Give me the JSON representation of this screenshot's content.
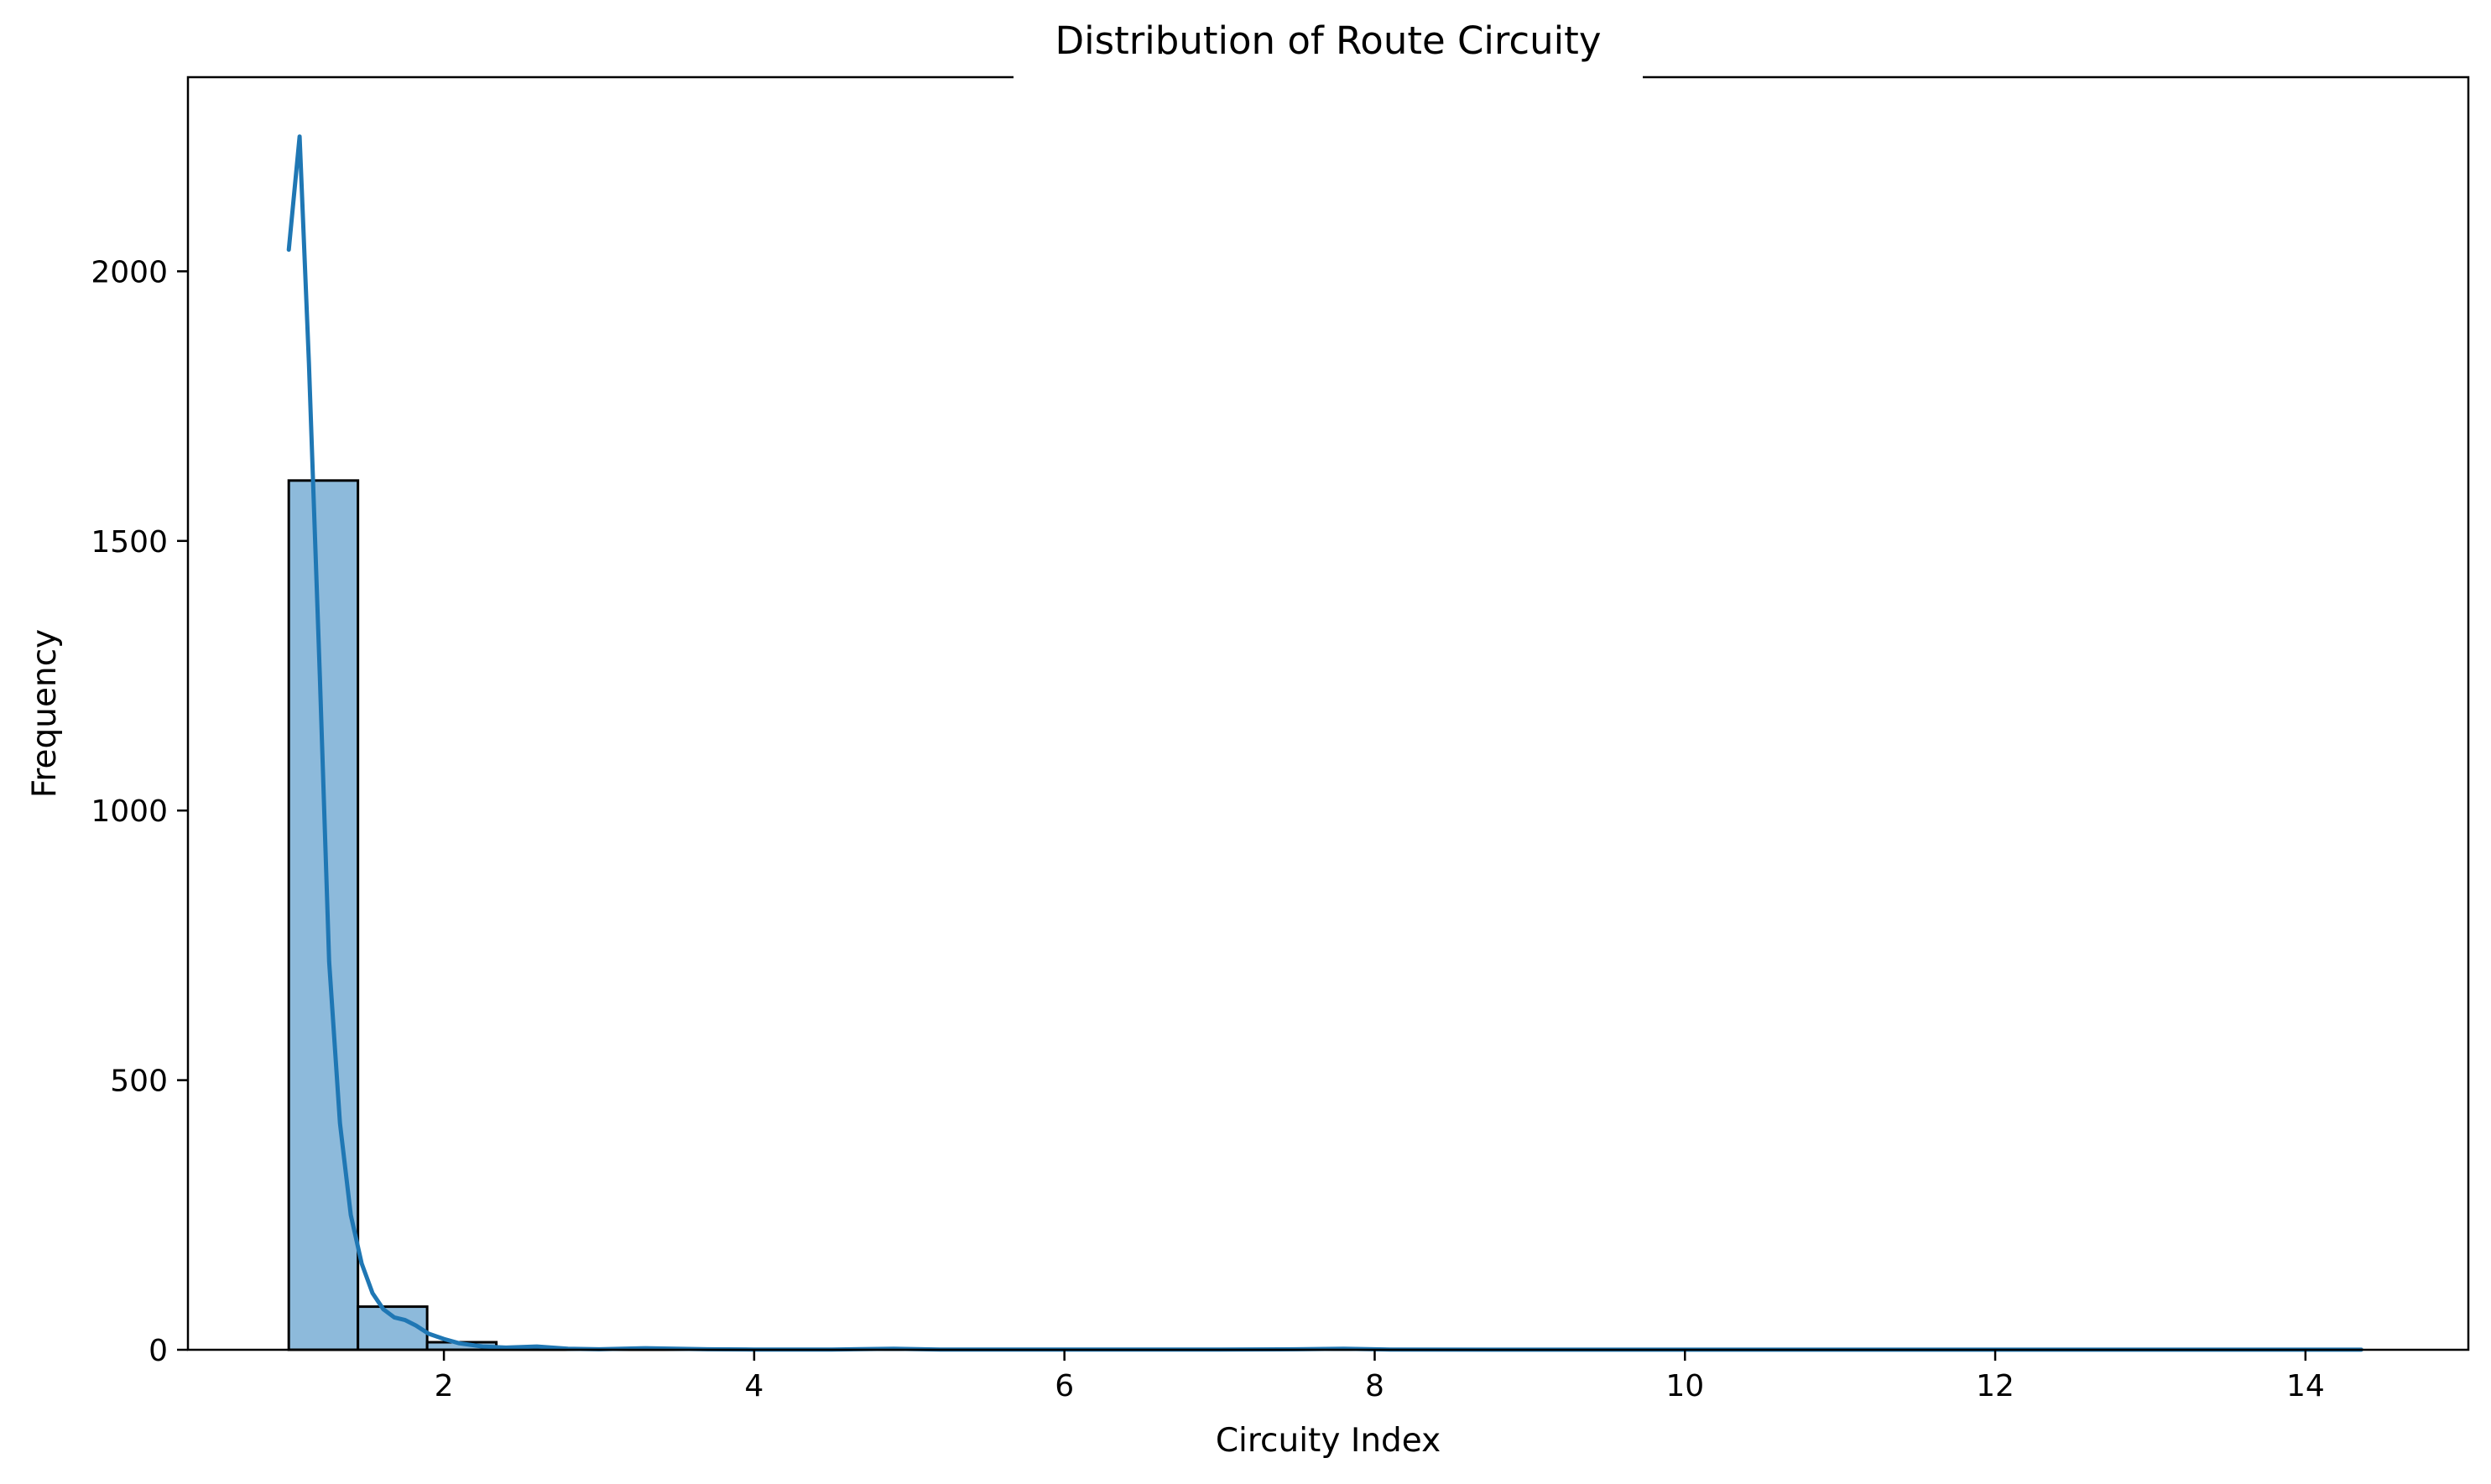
{
  "chart_data": {
    "type": "bar",
    "title": "Distribution of Route Circuity",
    "xlabel": "Circuity Index",
    "ylabel": "Frequency",
    "xlim": [
      0.35,
      15.05
    ],
    "ylim": [
      0,
      2360
    ],
    "x_ticks": [
      2,
      4,
      6,
      8,
      10,
      12,
      14
    ],
    "y_ticks": [
      0,
      500,
      1000,
      1500,
      2000
    ],
    "grid": false,
    "bar_color": "#8dbadb",
    "bar_edge_color": "#000000",
    "line_color": "#1f77b4",
    "bins": [
      {
        "x0": 1.0,
        "x1": 1.446,
        "count": 1612
      },
      {
        "x0": 1.446,
        "x1": 1.892,
        "count": 80
      },
      {
        "x0": 1.892,
        "x1": 2.338,
        "count": 14
      },
      {
        "x0": 2.338,
        "x1": 2.784,
        "count": 3
      },
      {
        "x0": 2.784,
        "x1": 3.23,
        "count": 1
      },
      {
        "x0": 3.23,
        "x1": 3.676,
        "count": 2
      },
      {
        "x0": 3.676,
        "x1": 4.122,
        "count": 1
      },
      {
        "x0": 4.122,
        "x1": 4.568,
        "count": 0
      },
      {
        "x0": 4.568,
        "x1": 5.014,
        "count": 1
      },
      {
        "x0": 5.014,
        "x1": 7.56,
        "count": 0
      },
      {
        "x0": 7.56,
        "x1": 8.006,
        "count": 1
      },
      {
        "x0": 8.006,
        "x1": 14.36,
        "count": 0
      }
    ],
    "kde": {
      "x": [
        1.0,
        1.07,
        1.13,
        1.2,
        1.26,
        1.33,
        1.4,
        1.47,
        1.54,
        1.61,
        1.68,
        1.75,
        1.82,
        1.9,
        2.0,
        2.1,
        2.25,
        2.4,
        2.6,
        2.8,
        3.0,
        3.3,
        3.5,
        3.7,
        4.0,
        4.5,
        4.9,
        5.2,
        6.0,
        7.0,
        7.5,
        7.8,
        8.1,
        9.0,
        10.0,
        12.0,
        14.36
      ],
      "y": [
        2040,
        2250,
        1830,
        1250,
        720,
        420,
        250,
        160,
        105,
        75,
        60,
        55,
        45,
        30,
        20,
        12,
        6,
        4,
        6,
        2,
        1,
        3,
        2,
        1,
        0.5,
        0.5,
        2,
        0.5,
        0.3,
        0.3,
        1,
        2,
        0.5,
        0.2,
        0.2,
        0.2,
        0.2
      ]
    }
  }
}
